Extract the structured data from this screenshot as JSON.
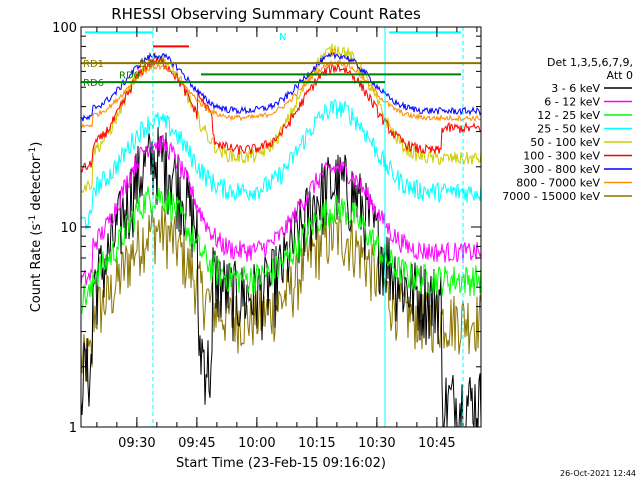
{
  "chart_data": {
    "type": "line",
    "title": "RHESSI Observing Summary Count Rates",
    "ylabel_main": "Count Rate (s",
    "ylabel_sup": "-1",
    "ylabel_tail": " detector",
    "ylabel_end": ")",
    "xlabel": "Start Time (23-Feb-15 09:16:02)",
    "footer_date": "26-Oct-2021 12:44",
    "y_scale": "log",
    "ylim": [
      1,
      100
    ],
    "xlim_minutes": [
      0,
      100
    ],
    "y_ticks": [
      {
        "label": "1",
        "value": 1
      },
      {
        "label": "10",
        "value": 10
      },
      {
        "label": "100",
        "value": 100
      }
    ],
    "x_ticks": [
      {
        "label": "09:30",
        "value": 13.97
      },
      {
        "label": "09:45",
        "value": 28.97
      },
      {
        "label": "10:00",
        "value": 43.97
      },
      {
        "label": "10:15",
        "value": 58.97
      },
      {
        "label": "10:30",
        "value": 73.97
      },
      {
        "label": "10:45",
        "value": 88.97
      }
    ],
    "legend_header": [
      "Det 1,3,5,6,7,9,",
      "Att 0"
    ],
    "series": [
      {
        "name": "3 - 6 keV",
        "color": "#000000"
      },
      {
        "name": "6 - 12 keV",
        "color": "#ff00ff"
      },
      {
        "name": "12 - 25 keV",
        "color": "#00ff00"
      },
      {
        "name": "25 - 50 keV",
        "color": "#00ffff"
      },
      {
        "name": "50 - 100 keV",
        "color": "#cccc00"
      },
      {
        "name": "100 - 300 keV",
        "color": "#ff0000"
      },
      {
        "name": "300 - 800 keV",
        "color": "#0000ff"
      },
      {
        "name": "800 - 7000 keV",
        "color": "#ff8c00"
      },
      {
        "name": "7000 - 15000 keV",
        "color": "#8b7500"
      }
    ],
    "flag_labels": [
      {
        "label": "N",
        "color": "#00ffff",
        "x": 49,
        "y": 90
      },
      {
        "label": "D1",
        "color": "#8b7500",
        "x": 14,
        "y": 66
      },
      {
        "label": "RD1",
        "color": "#8b7500",
        "x": 0,
        "y": 66
      },
      {
        "label": "RD0",
        "color": "#008000",
        "x": 9,
        "y": 58
      },
      {
        "label": "RD6",
        "color": "#008000",
        "x": 0,
        "y": 53
      },
      {
        "label": "F",
        "color": "#ff8c00",
        "x": 62,
        "y": 75
      }
    ]
  }
}
